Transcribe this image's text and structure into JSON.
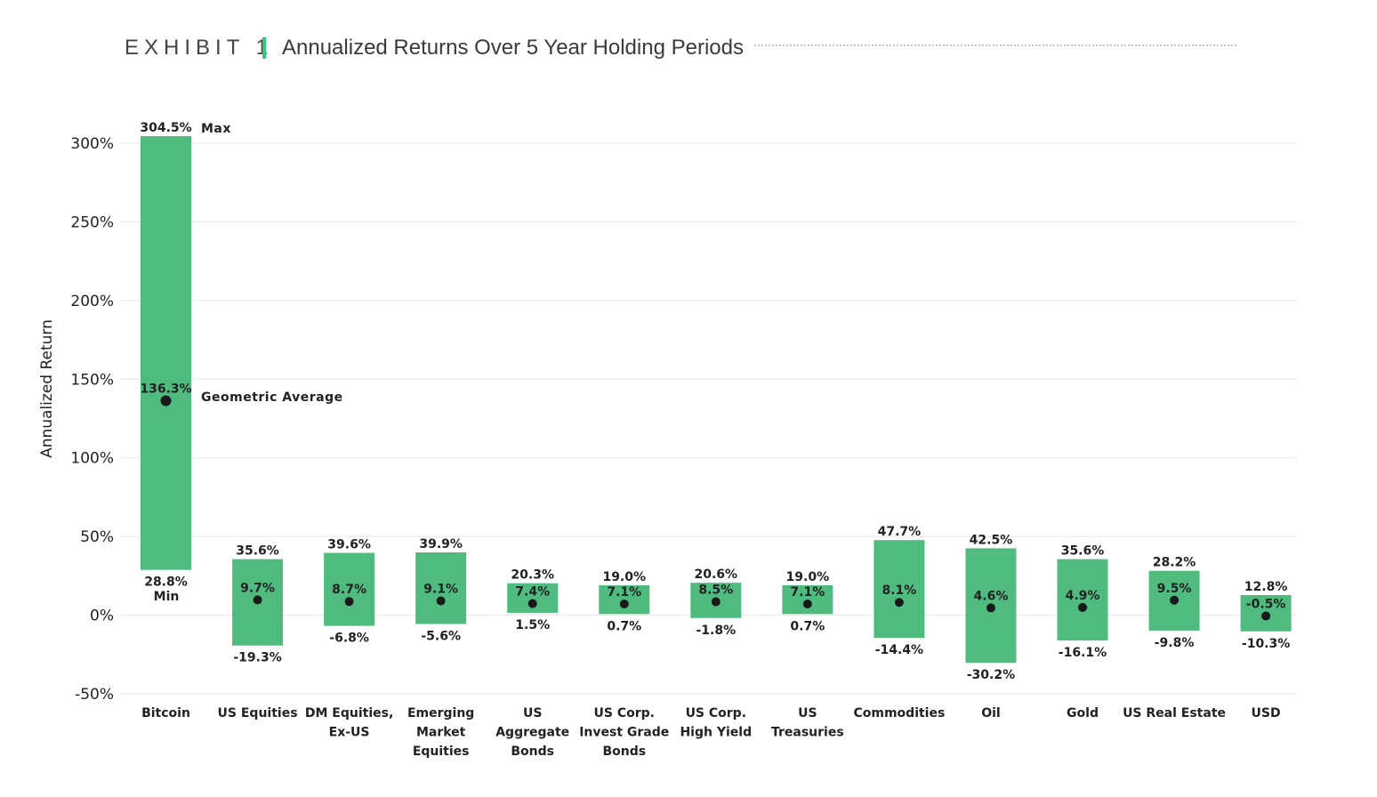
{
  "header": {
    "exhibit_label": "EXHIBIT 1",
    "title": "Annualized Returns Over 5 Year Holding Periods"
  },
  "colors": {
    "bar": "#4fbb7f",
    "accent": "#2ecc71",
    "grid": "#e6e6e6",
    "dot": "#1a1a1a"
  },
  "chart_data": {
    "type": "bar",
    "subtype": "floating-range",
    "title": "Annualized Returns Over 5 Year Holding Periods",
    "xlabel": "",
    "ylabel": "Annualized Return",
    "ylim": [
      -50,
      300
    ],
    "yticks": [
      -50,
      0,
      50,
      100,
      150,
      200,
      250,
      300
    ],
    "ytick_labels": [
      "-50%",
      "0%",
      "50%",
      "100%",
      "150%",
      "200%",
      "250%",
      "300%"
    ],
    "grid": true,
    "annotations": {
      "max": "Max",
      "min": "Min",
      "average": "Geometric Average"
    },
    "categories": [
      [
        "Bitcoin"
      ],
      [
        "US Equities"
      ],
      [
        "DM Equities,",
        "Ex-US"
      ],
      [
        "Emerging",
        "Market",
        "Equities"
      ],
      [
        "US",
        "Aggregate",
        "Bonds"
      ],
      [
        "US Corp.",
        "Invest Grade",
        "Bonds"
      ],
      [
        "US Corp.",
        "High Yield"
      ],
      [
        "US",
        "Treasuries"
      ],
      [
        "Commodities"
      ],
      [
        "Oil"
      ],
      [
        "Gold"
      ],
      [
        "US Real Estate"
      ],
      [
        "USD"
      ]
    ],
    "series": [
      {
        "name": "Max",
        "values": [
          304.5,
          35.6,
          39.6,
          39.9,
          20.3,
          19.0,
          20.6,
          19.0,
          47.7,
          42.5,
          35.6,
          28.2,
          12.8
        ],
        "labels": [
          "304.5%",
          "35.6%",
          "39.6%",
          "39.9%",
          "20.3%",
          "19.0%",
          "20.6%",
          "19.0%",
          "47.7%",
          "42.5%",
          "35.6%",
          "28.2%",
          "12.8%"
        ]
      },
      {
        "name": "Min",
        "values": [
          28.8,
          -19.3,
          -6.8,
          -5.6,
          1.5,
          0.7,
          -1.8,
          0.7,
          -14.4,
          -30.2,
          -16.1,
          -9.8,
          -10.3
        ],
        "labels": [
          "28.8%",
          "-19.3%",
          "-6.8%",
          "-5.6%",
          "1.5%",
          "0.7%",
          "-1.8%",
          "0.7%",
          "-14.4%",
          "-30.2%",
          "-16.1%",
          "-9.8%",
          "-10.3%"
        ]
      },
      {
        "name": "Geometric Average",
        "values": [
          136.3,
          9.7,
          8.7,
          9.1,
          7.4,
          7.1,
          8.5,
          7.1,
          8.1,
          4.6,
          4.9,
          9.5,
          -0.5
        ],
        "labels": [
          "136.3%",
          "9.7%",
          "8.7%",
          "9.1%",
          "7.4%",
          "7.1%",
          "8.5%",
          "7.1%",
          "8.1%",
          "4.6%",
          "4.9%",
          "9.5%",
          "-0.5%"
        ]
      }
    ]
  }
}
